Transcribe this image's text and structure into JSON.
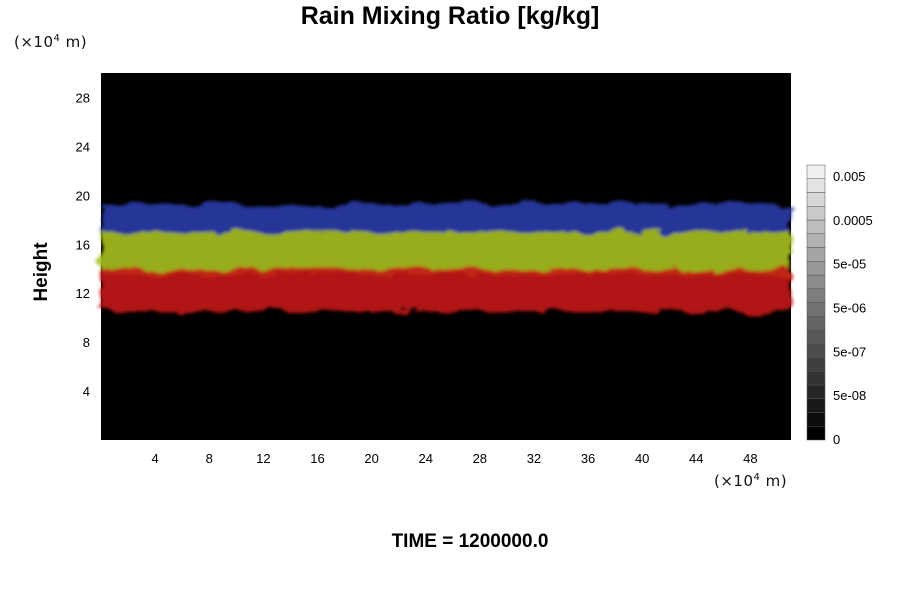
{
  "chart_data": {
    "type": "heatmap",
    "title": "Rain Mixing Ratio [kg/kg]",
    "ylabel": "Height",
    "y_unit": "(×10",
    "x_unit": "(×10",
    "unit_power": "4",
    "unit_suffix": " m)",
    "time_label": "TIME = 1200000.0",
    "xlim": [
      0,
      51
    ],
    "ylim": [
      0,
      30
    ],
    "x_ticks": [
      4,
      8,
      12,
      16,
      20,
      24,
      28,
      32,
      36,
      40,
      44,
      48
    ],
    "y_ticks": [
      4,
      8,
      12,
      16,
      20,
      24,
      28
    ],
    "colorbar": {
      "labels": [
        "0",
        "5e-08",
        "5e-07",
        "5e-06",
        "5e-05",
        "0.0005",
        "0.005"
      ],
      "levels": 20
    },
    "background_color": "#000000",
    "layers": [
      {
        "color": "#2a3aa8",
        "y_bottom": 17,
        "y_top": 19.3
      },
      {
        "color": "#a8c020",
        "y_bottom": 13.5,
        "y_top": 17
      },
      {
        "color": "#c41a14",
        "y_bottom": 10.5,
        "y_top": 14
      }
    ]
  }
}
